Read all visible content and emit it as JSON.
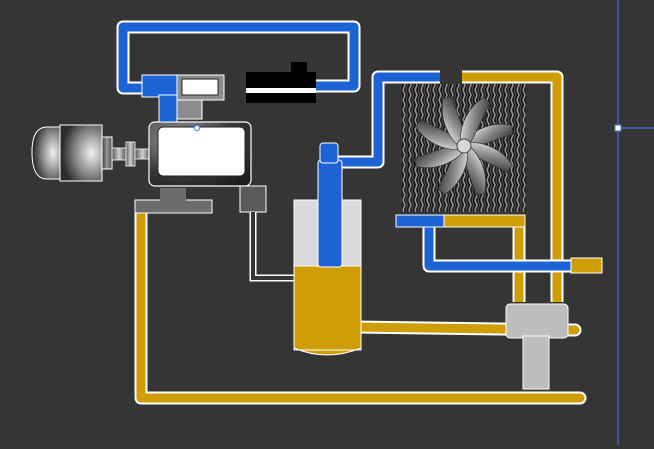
{
  "diagram": {
    "kind": "air compressor schematic",
    "colors": {
      "background": "#353535",
      "air_line": "#1e63d6",
      "oil_line": "#cf9d05",
      "outline": "#ffffff",
      "grey_part": "#bdbdbd",
      "dark_part": "#5a5a5a",
      "selection_guide": "#4a7cff"
    },
    "components": [
      "motor",
      "coupling",
      "compressor-airend",
      "intake-valve",
      "air-filter",
      "oil-separator-tank",
      "cooler-fan",
      "cooler",
      "oil-filter",
      "thermostatic-valve",
      "air-outlet"
    ]
  }
}
